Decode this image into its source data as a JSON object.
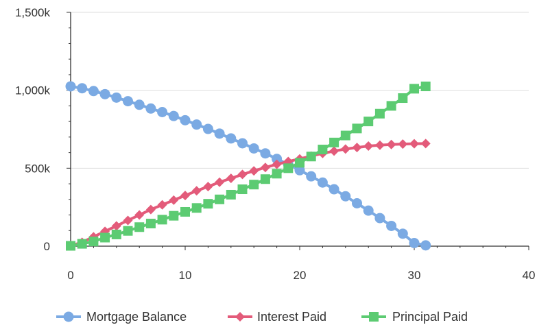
{
  "chart_data": {
    "type": "line",
    "title": "",
    "xlabel": "",
    "ylabel": "",
    "xlim": [
      0,
      40
    ],
    "ylim": [
      0,
      1500000
    ],
    "x_ticks": [
      0,
      10,
      20,
      30,
      40
    ],
    "x_tick_labels": [
      "0",
      "10",
      "20",
      "30",
      "40"
    ],
    "y_ticks": [
      0,
      500000,
      1000000,
      1500000
    ],
    "y_tick_labels": [
      "0",
      "500k",
      "1,000k",
      "1,500k"
    ],
    "grid": "horizontal",
    "legend_position": "bottom",
    "x": [
      0,
      1,
      2,
      3,
      4,
      5,
      6,
      7,
      8,
      9,
      10,
      11,
      12,
      13,
      14,
      15,
      16,
      17,
      18,
      19,
      20,
      21,
      22,
      23,
      24,
      25,
      26,
      27,
      28,
      29,
      30,
      31
    ],
    "series": [
      {
        "name": "Mortgage Balance",
        "color": "#7BAAE3",
        "marker": "circle",
        "values": [
          1025000,
          1013000,
          995000,
          975000,
          953000,
          930000,
          907000,
          883000,
          860000,
          835000,
          808000,
          780000,
          752000,
          722000,
          691000,
          660000,
          627000,
          595000,
          560000,
          525000,
          487000,
          448000,
          408000,
          365000,
          320000,
          275000,
          228000,
          180000,
          130000,
          80000,
          20000,
          5000
        ]
      },
      {
        "name": "Interest Paid",
        "color": "#E35B7A",
        "marker": "diamond",
        "values": [
          2000,
          25000,
          60000,
          95000,
          130000,
          165000,
          200000,
          235000,
          265000,
          295000,
          325000,
          355000,
          382000,
          410000,
          435000,
          460000,
          483000,
          505000,
          525000,
          543000,
          560000,
          578000,
          595000,
          610000,
          623000,
          633000,
          642000,
          648000,
          652000,
          655000,
          657000,
          658000
        ]
      },
      {
        "name": "Principal Paid",
        "color": "#5CCB72",
        "marker": "square",
        "values": [
          2000,
          15000,
          30000,
          55000,
          75000,
          98000,
          122000,
          145000,
          170000,
          195000,
          220000,
          245000,
          272000,
          300000,
          330000,
          365000,
          395000,
          430000,
          465000,
          500000,
          535000,
          575000,
          620000,
          665000,
          710000,
          755000,
          800000,
          850000,
          900000,
          950000,
          1010000,
          1025000
        ]
      }
    ]
  }
}
